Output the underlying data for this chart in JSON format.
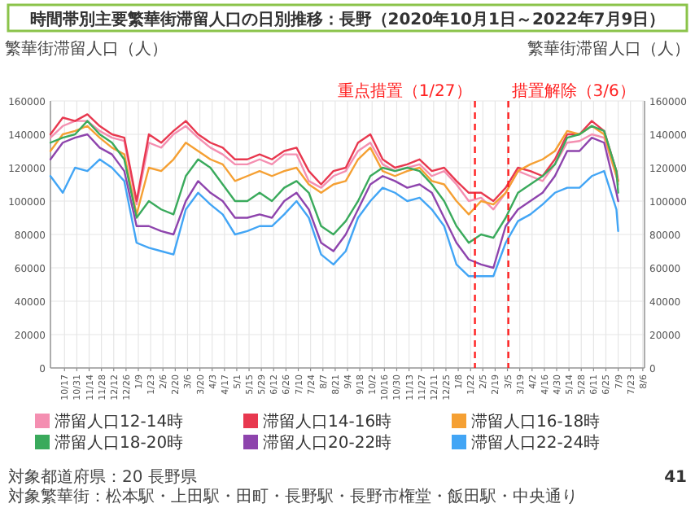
{
  "chart_data": {
    "type": "line",
    "title": "時間帯別主要繁華街滞留人口の日別推移：長野（2020年10月1日～2022年7月9日）",
    "ylabel": "繁華街滞留人口（人）",
    "y2label": "繁華街滞留人口（人）",
    "x": [
      "2020-10-01",
      "2020-10-15",
      "2020-10-29",
      "2020-11-12",
      "2020-11-26",
      "2020-12-10",
      "2020-12-24",
      "2021-01-07",
      "2021-01-21",
      "2021-02-04",
      "2021-02-18",
      "2021-03-04",
      "2021-03-18",
      "2021-04-01",
      "2021-04-15",
      "2021-04-29",
      "2021-05-13",
      "2021-05-27",
      "2021-06-10",
      "2021-06-24",
      "2021-07-08",
      "2021-07-22",
      "2021-08-05",
      "2021-08-19",
      "2021-09-02",
      "2021-09-16",
      "2021-09-30",
      "2021-10-14",
      "2021-10-28",
      "2021-11-11",
      "2021-11-25",
      "2021-12-09",
      "2021-12-23",
      "2022-01-06",
      "2022-01-20",
      "2022-02-03",
      "2022-02-17",
      "2022-03-03",
      "2022-03-17",
      "2022-03-31",
      "2022-04-14",
      "2022-04-28",
      "2022-05-12",
      "2022-05-26",
      "2022-06-09",
      "2022-06-23",
      "2022-07-07",
      "2022-07-09"
    ],
    "series": [
      {
        "name": "滞留人口12-14時",
        "color": "#f48fb1",
        "values": [
          138000,
          145000,
          148000,
          148000,
          142000,
          138000,
          136000,
          98000,
          135000,
          132000,
          140000,
          145000,
          138000,
          132000,
          128000,
          122000,
          122000,
          125000,
          122000,
          128000,
          128000,
          112000,
          108000,
          115000,
          118000,
          130000,
          135000,
          122000,
          118000,
          120000,
          122000,
          115000,
          118000,
          110000,
          100000,
          102000,
          95000,
          105000,
          118000,
          115000,
          112000,
          122000,
          135000,
          136000,
          140000,
          138000,
          115000,
          110000
        ]
      },
      {
        "name": "滞留人口14-16時",
        "color": "#e8384f",
        "values": [
          140000,
          150000,
          148000,
          152000,
          145000,
          140000,
          138000,
          100000,
          140000,
          135000,
          142000,
          148000,
          140000,
          135000,
          132000,
          125000,
          125000,
          128000,
          125000,
          130000,
          132000,
          118000,
          110000,
          118000,
          120000,
          135000,
          140000,
          125000,
          120000,
          122000,
          125000,
          118000,
          120000,
          112000,
          105000,
          105000,
          100000,
          108000,
          120000,
          118000,
          115000,
          125000,
          140000,
          140000,
          148000,
          142000,
          118000,
          112000
        ]
      },
      {
        "name": "滞留人口16-18時",
        "color": "#f5a033",
        "values": [
          130000,
          140000,
          142000,
          145000,
          138000,
          132000,
          128000,
          92000,
          120000,
          118000,
          125000,
          135000,
          130000,
          125000,
          122000,
          112000,
          115000,
          118000,
          115000,
          118000,
          120000,
          110000,
          105000,
          110000,
          112000,
          125000,
          132000,
          118000,
          115000,
          118000,
          120000,
          112000,
          110000,
          100000,
          92000,
          100000,
          98000,
          105000,
          118000,
          122000,
          125000,
          130000,
          142000,
          140000,
          145000,
          140000,
          115000,
          112000
        ]
      },
      {
        "name": "滞留人口18-20時",
        "color": "#3aaa5c",
        "values": [
          135000,
          138000,
          140000,
          148000,
          140000,
          135000,
          125000,
          90000,
          100000,
          95000,
          92000,
          115000,
          125000,
          120000,
          110000,
          100000,
          100000,
          105000,
          100000,
          108000,
          112000,
          105000,
          85000,
          80000,
          88000,
          100000,
          115000,
          120000,
          118000,
          120000,
          118000,
          110000,
          100000,
          85000,
          75000,
          80000,
          78000,
          90000,
          105000,
          110000,
          115000,
          122000,
          138000,
          140000,
          145000,
          142000,
          118000,
          105000
        ]
      },
      {
        "name": "滞留人口20-22時",
        "color": "#8e44ad",
        "values": [
          125000,
          135000,
          138000,
          140000,
          132000,
          128000,
          118000,
          85000,
          85000,
          82000,
          80000,
          100000,
          112000,
          105000,
          100000,
          90000,
          90000,
          92000,
          90000,
          100000,
          105000,
          95000,
          75000,
          70000,
          80000,
          95000,
          110000,
          115000,
          112000,
          108000,
          110000,
          105000,
          90000,
          75000,
          65000,
          62000,
          60000,
          85000,
          95000,
          100000,
          105000,
          115000,
          130000,
          130000,
          138000,
          135000,
          105000,
          100000
        ]
      },
      {
        "name": "滞留人口22-24時",
        "color": "#42a5f5",
        "values": [
          115000,
          105000,
          120000,
          118000,
          125000,
          120000,
          112000,
          75000,
          72000,
          70000,
          68000,
          95000,
          105000,
          98000,
          92000,
          80000,
          82000,
          85000,
          85000,
          92000,
          100000,
          90000,
          68000,
          62000,
          70000,
          90000,
          100000,
          108000,
          105000,
          100000,
          102000,
          95000,
          85000,
          62000,
          55000,
          55000,
          55000,
          75000,
          88000,
          92000,
          98000,
          105000,
          108000,
          108000,
          115000,
          118000,
          95000,
          82000
        ]
      }
    ],
    "xlim": [
      "2020-10-01",
      "2022-08-08"
    ],
    "xticks": [
      {
        "value": "2020-10-17",
        "label": "10/17"
      },
      {
        "value": "2020-10-31",
        "label": "10/31"
      },
      {
        "value": "2020-11-14",
        "label": "11/14"
      },
      {
        "value": "2020-11-28",
        "label": "11/28"
      },
      {
        "value": "2020-12-12",
        "label": "12/12"
      },
      {
        "value": "2020-12-26",
        "label": "12/26"
      },
      {
        "value": "2021-01-09",
        "label": "1/9"
      },
      {
        "value": "2021-01-23",
        "label": "1/23"
      },
      {
        "value": "2021-02-06",
        "label": "2/6"
      },
      {
        "value": "2021-02-20",
        "label": "2/20"
      },
      {
        "value": "2021-03-06",
        "label": "3/6"
      },
      {
        "value": "2021-03-20",
        "label": "3/20"
      },
      {
        "value": "2021-04-03",
        "label": "4/3"
      },
      {
        "value": "2021-04-17",
        "label": "4/17"
      },
      {
        "value": "2021-05-01",
        "label": "5/1"
      },
      {
        "value": "2021-05-15",
        "label": "5/15"
      },
      {
        "value": "2021-05-29",
        "label": "5/29"
      },
      {
        "value": "2021-06-12",
        "label": "6/12"
      },
      {
        "value": "2021-06-26",
        "label": "6/26"
      },
      {
        "value": "2021-07-10",
        "label": "7/10"
      },
      {
        "value": "2021-07-24",
        "label": "7/24"
      },
      {
        "value": "2021-08-07",
        "label": "8/7"
      },
      {
        "value": "2021-08-21",
        "label": "8/21"
      },
      {
        "value": "2021-09-04",
        "label": "9/4"
      },
      {
        "value": "2021-09-18",
        "label": "9/18"
      },
      {
        "value": "2021-10-02",
        "label": "10/2"
      },
      {
        "value": "2021-10-16",
        "label": "10/16"
      },
      {
        "value": "2021-10-30",
        "label": "10/30"
      },
      {
        "value": "2021-11-13",
        "label": "11/13"
      },
      {
        "value": "2021-11-27",
        "label": "11/27"
      },
      {
        "value": "2021-12-11",
        "label": "12/11"
      },
      {
        "value": "2021-12-25",
        "label": "12/25"
      },
      {
        "value": "2022-01-08",
        "label": "1/8"
      },
      {
        "value": "2022-01-22",
        "label": "1/22"
      },
      {
        "value": "2022-02-05",
        "label": "2/5"
      },
      {
        "value": "2022-02-19",
        "label": "2/19"
      },
      {
        "value": "2022-03-05",
        "label": "3/5"
      },
      {
        "value": "2022-03-19",
        "label": "3/19"
      },
      {
        "value": "2022-04-02",
        "label": "4/2"
      },
      {
        "value": "2022-04-16",
        "label": "4/16"
      },
      {
        "value": "2022-04-30",
        "label": "4/30"
      },
      {
        "value": "2022-05-14",
        "label": "5/14"
      },
      {
        "value": "2022-05-28",
        "label": "5/28"
      },
      {
        "value": "2022-06-11",
        "label": "6/11"
      },
      {
        "value": "2022-06-25",
        "label": "6/25"
      },
      {
        "value": "2022-07-09",
        "label": "7/9"
      },
      {
        "value": "2022-07-23",
        "label": "7/23"
      },
      {
        "value": "2022-08-06",
        "label": "8/6"
      }
    ],
    "ylim": [
      0,
      160000
    ],
    "yticks": [
      0,
      20000,
      40000,
      60000,
      80000,
      100000,
      120000,
      140000,
      160000
    ],
    "y2lim": [
      0,
      160000
    ],
    "y2ticks": [
      0,
      20000,
      40000,
      60000,
      80000,
      100000,
      120000,
      140000,
      160000
    ],
    "ref_lines": [
      {
        "axis": "x",
        "value": "2022-01-27",
        "label": "重点措置（1/27）",
        "color": "#ff2020",
        "line_style": "dashed"
      },
      {
        "axis": "x",
        "value": "2022-03-06",
        "label": "措置解除（3/6）",
        "color": "#ff2020",
        "line_style": "dashed"
      }
    ],
    "annotations": [
      "対象都道府県：20 長野県",
      "対象繁華街：松本駅・上田駅・田町・長野駅・長野市権堂・飯田駅・中央通り",
      "41"
    ],
    "grid": true,
    "legend": "bottom"
  }
}
